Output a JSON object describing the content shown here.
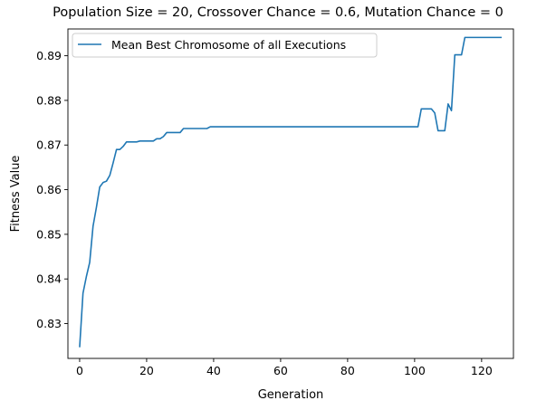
{
  "chart_data": {
    "type": "line",
    "title": "Population Size = 20, Crossover Chance = 0.6, Mutation Chance = 0",
    "xlabel": "Generation",
    "ylabel": "Fitness Value",
    "xlim": [
      -3.5,
      129.5
    ],
    "ylim": [
      0.8222,
      0.896
    ],
    "xticks": [
      0,
      20,
      40,
      60,
      80,
      100,
      120
    ],
    "yticks": [
      0.83,
      0.84,
      0.85,
      0.86,
      0.87,
      0.88,
      0.89
    ],
    "xtick_labels": [
      "0",
      "20",
      "40",
      "60",
      "80",
      "100",
      "120"
    ],
    "ytick_labels": [
      "0.83",
      "0.84",
      "0.85",
      "0.86",
      "0.87",
      "0.88",
      "0.89"
    ],
    "grid": false,
    "legend_position": "upper-left",
    "line_color": "#1f77b4",
    "series": [
      {
        "name": "Mean Best Chromosome of all Executions",
        "x": [
          0,
          1,
          2,
          3,
          4,
          5,
          6,
          7,
          8,
          9,
          10,
          11,
          12,
          13,
          14,
          15,
          16,
          17,
          18,
          19,
          20,
          21,
          22,
          23,
          24,
          25,
          26,
          27,
          28,
          29,
          30,
          31,
          32,
          33,
          34,
          35,
          36,
          37,
          38,
          39,
          40,
          45,
          50,
          55,
          60,
          65,
          70,
          75,
          80,
          85,
          90,
          95,
          100,
          101,
          102,
          103,
          104,
          105,
          106,
          107,
          108,
          109,
          110,
          111,
          112,
          113,
          114,
          115,
          116,
          117,
          118,
          119,
          120,
          121,
          122,
          123,
          124,
          125,
          126
        ],
        "y": [
          0.8247,
          0.8368,
          0.8405,
          0.8437,
          0.8518,
          0.856,
          0.8606,
          0.8616,
          0.8619,
          0.8632,
          0.866,
          0.869,
          0.869,
          0.8697,
          0.8707,
          0.8707,
          0.8707,
          0.8707,
          0.8709,
          0.8709,
          0.8709,
          0.8709,
          0.8709,
          0.8714,
          0.8714,
          0.8719,
          0.8728,
          0.8728,
          0.8728,
          0.8728,
          0.8728,
          0.8737,
          0.8737,
          0.8737,
          0.8737,
          0.8737,
          0.8737,
          0.8737,
          0.8737,
          0.8741,
          0.8741,
          0.8741,
          0.8741,
          0.8741,
          0.8741,
          0.8741,
          0.8741,
          0.8741,
          0.8741,
          0.8741,
          0.8741,
          0.8741,
          0.8741,
          0.8741,
          0.8781,
          0.8781,
          0.8781,
          0.8781,
          0.8772,
          0.8732,
          0.8732,
          0.8732,
          0.8792,
          0.8777,
          0.8902,
          0.8902,
          0.8902,
          0.8941,
          0.8941,
          0.8941,
          0.8941,
          0.8941,
          0.8941,
          0.8941,
          0.8941,
          0.8941,
          0.8941,
          0.8941,
          0.8941
        ]
      }
    ]
  }
}
